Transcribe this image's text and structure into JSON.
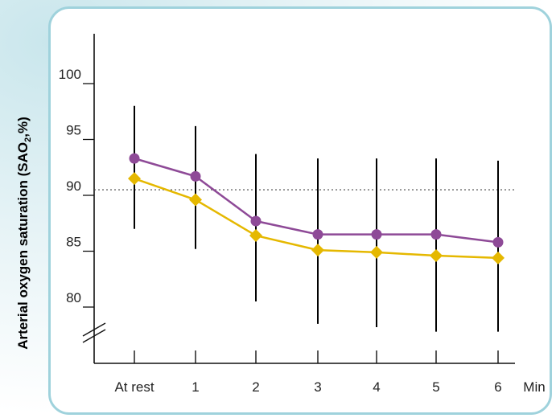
{
  "chart_data": {
    "type": "line",
    "title": "",
    "xlabel": "Min",
    "ylabel": "Arterial oxygen saturation (SAO2,%)",
    "ylabel_parts": {
      "before": "Arterial oxygen saturation (SAO",
      "sub": "2",
      "after": ",%)"
    },
    "categories": [
      "At rest",
      "1",
      "2",
      "3",
      "4",
      "5",
      "6"
    ],
    "ylim": [
      75,
      105
    ],
    "yticks": [
      "80",
      "85",
      "90",
      "95",
      "100"
    ],
    "axis_break": true,
    "reference_line": {
      "y": 90.5,
      "style": "dotted"
    },
    "grid": false,
    "series": [
      {
        "color": "#8e4a97",
        "marker": "circle",
        "values": [
          93.3,
          91.7,
          87.7,
          86.5,
          86.5,
          86.5,
          85.8
        ]
      },
      {
        "color": "#e5b800",
        "marker": "diamond",
        "values": [
          91.5,
          89.6,
          86.4,
          85.1,
          84.9,
          84.6,
          84.4
        ]
      }
    ],
    "error_bars": [
      {
        "low": 87.0,
        "high": 98.0
      },
      {
        "low": 85.2,
        "high": 96.2
      },
      {
        "low": 80.5,
        "high": 93.7
      },
      {
        "low": 78.5,
        "high": 93.3
      },
      {
        "low": 78.2,
        "high": 93.3
      },
      {
        "low": 77.8,
        "high": 93.3
      },
      {
        "low": 77.8,
        "high": 93.1
      }
    ]
  }
}
